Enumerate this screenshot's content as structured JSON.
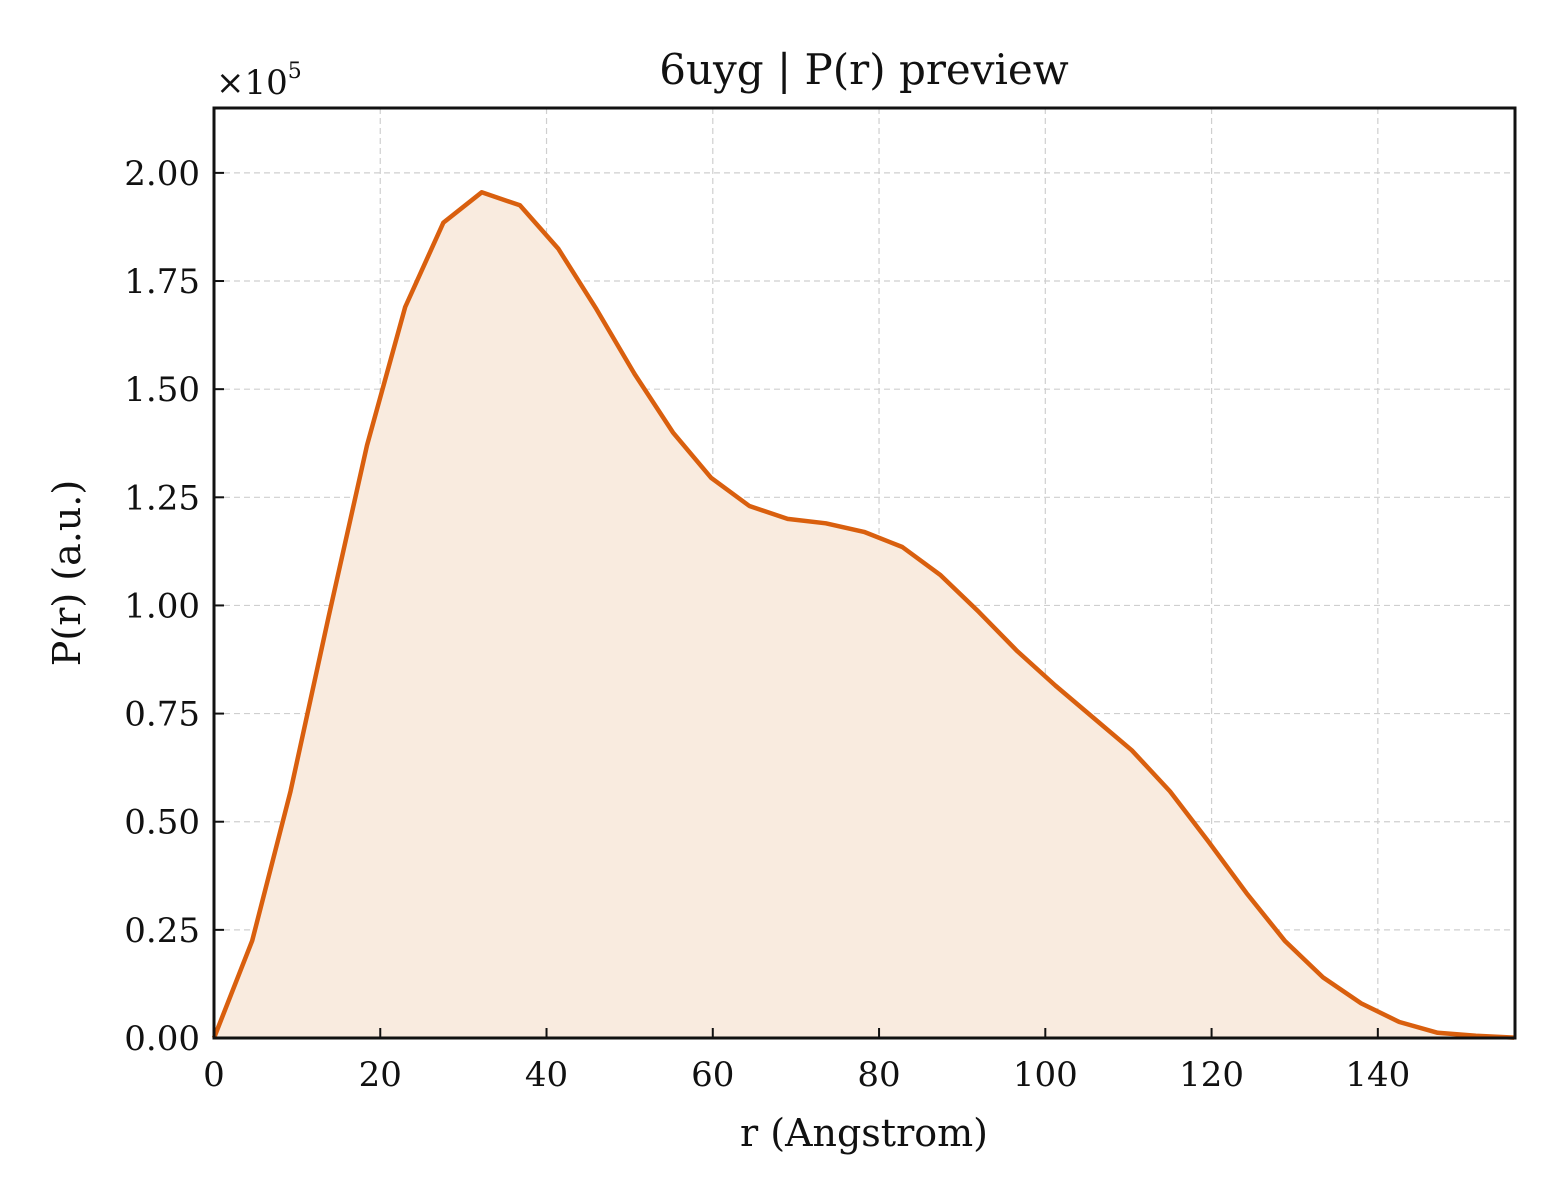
{
  "chart_data": {
    "type": "area",
    "title": "6uyg | P(r) preview",
    "xlabel": "r (Angstrom)",
    "ylabel": "P(r) (a.u.)",
    "y_multiplier": "×10",
    "y_multiplier_exponent": "5",
    "xlim": [
      0,
      156.5
    ],
    "ylim": [
      0,
      2.15
    ],
    "x_ticks": [
      0,
      20,
      40,
      60,
      80,
      100,
      120,
      140
    ],
    "x_tick_labels": [
      "0",
      "20",
      "40",
      "60",
      "80",
      "100",
      "120",
      "140"
    ],
    "y_ticks": [
      0,
      0.25,
      0.5,
      0.75,
      1.0,
      1.25,
      1.5,
      1.75,
      2.0
    ],
    "y_tick_labels": [
      "0.00",
      "0.25",
      "0.50",
      "0.75",
      "1.00",
      "1.25",
      "1.50",
      "1.75",
      "2.00"
    ],
    "grid": true,
    "line_color": "#d95f0e",
    "fill_color": "#f9ebdf",
    "series": [
      {
        "x": [
          0,
          4.6,
          9.2,
          13.8,
          18.4,
          23.0,
          27.6,
          32.2,
          36.8,
          41.4,
          46.0,
          50.6,
          55.2,
          59.8,
          64.4,
          69.0,
          73.6,
          78.2,
          82.8,
          87.4,
          92.0,
          96.6,
          101.2,
          105.8,
          110.4,
          115.0,
          119.6,
          124.2,
          128.8,
          133.4,
          138.0,
          142.6,
          147.2,
          151.8,
          156.4
        ],
        "y": [
          0.0,
          0.225,
          0.57,
          0.975,
          1.37,
          1.69,
          1.885,
          1.955,
          1.925,
          1.825,
          1.685,
          1.535,
          1.4,
          1.295,
          1.23,
          1.2,
          1.19,
          1.17,
          1.135,
          1.07,
          0.985,
          0.895,
          0.815,
          0.74,
          0.665,
          0.57,
          0.455,
          0.335,
          0.225,
          0.14,
          0.08,
          0.037,
          0.012,
          0.005,
          0.001
        ]
      }
    ]
  }
}
